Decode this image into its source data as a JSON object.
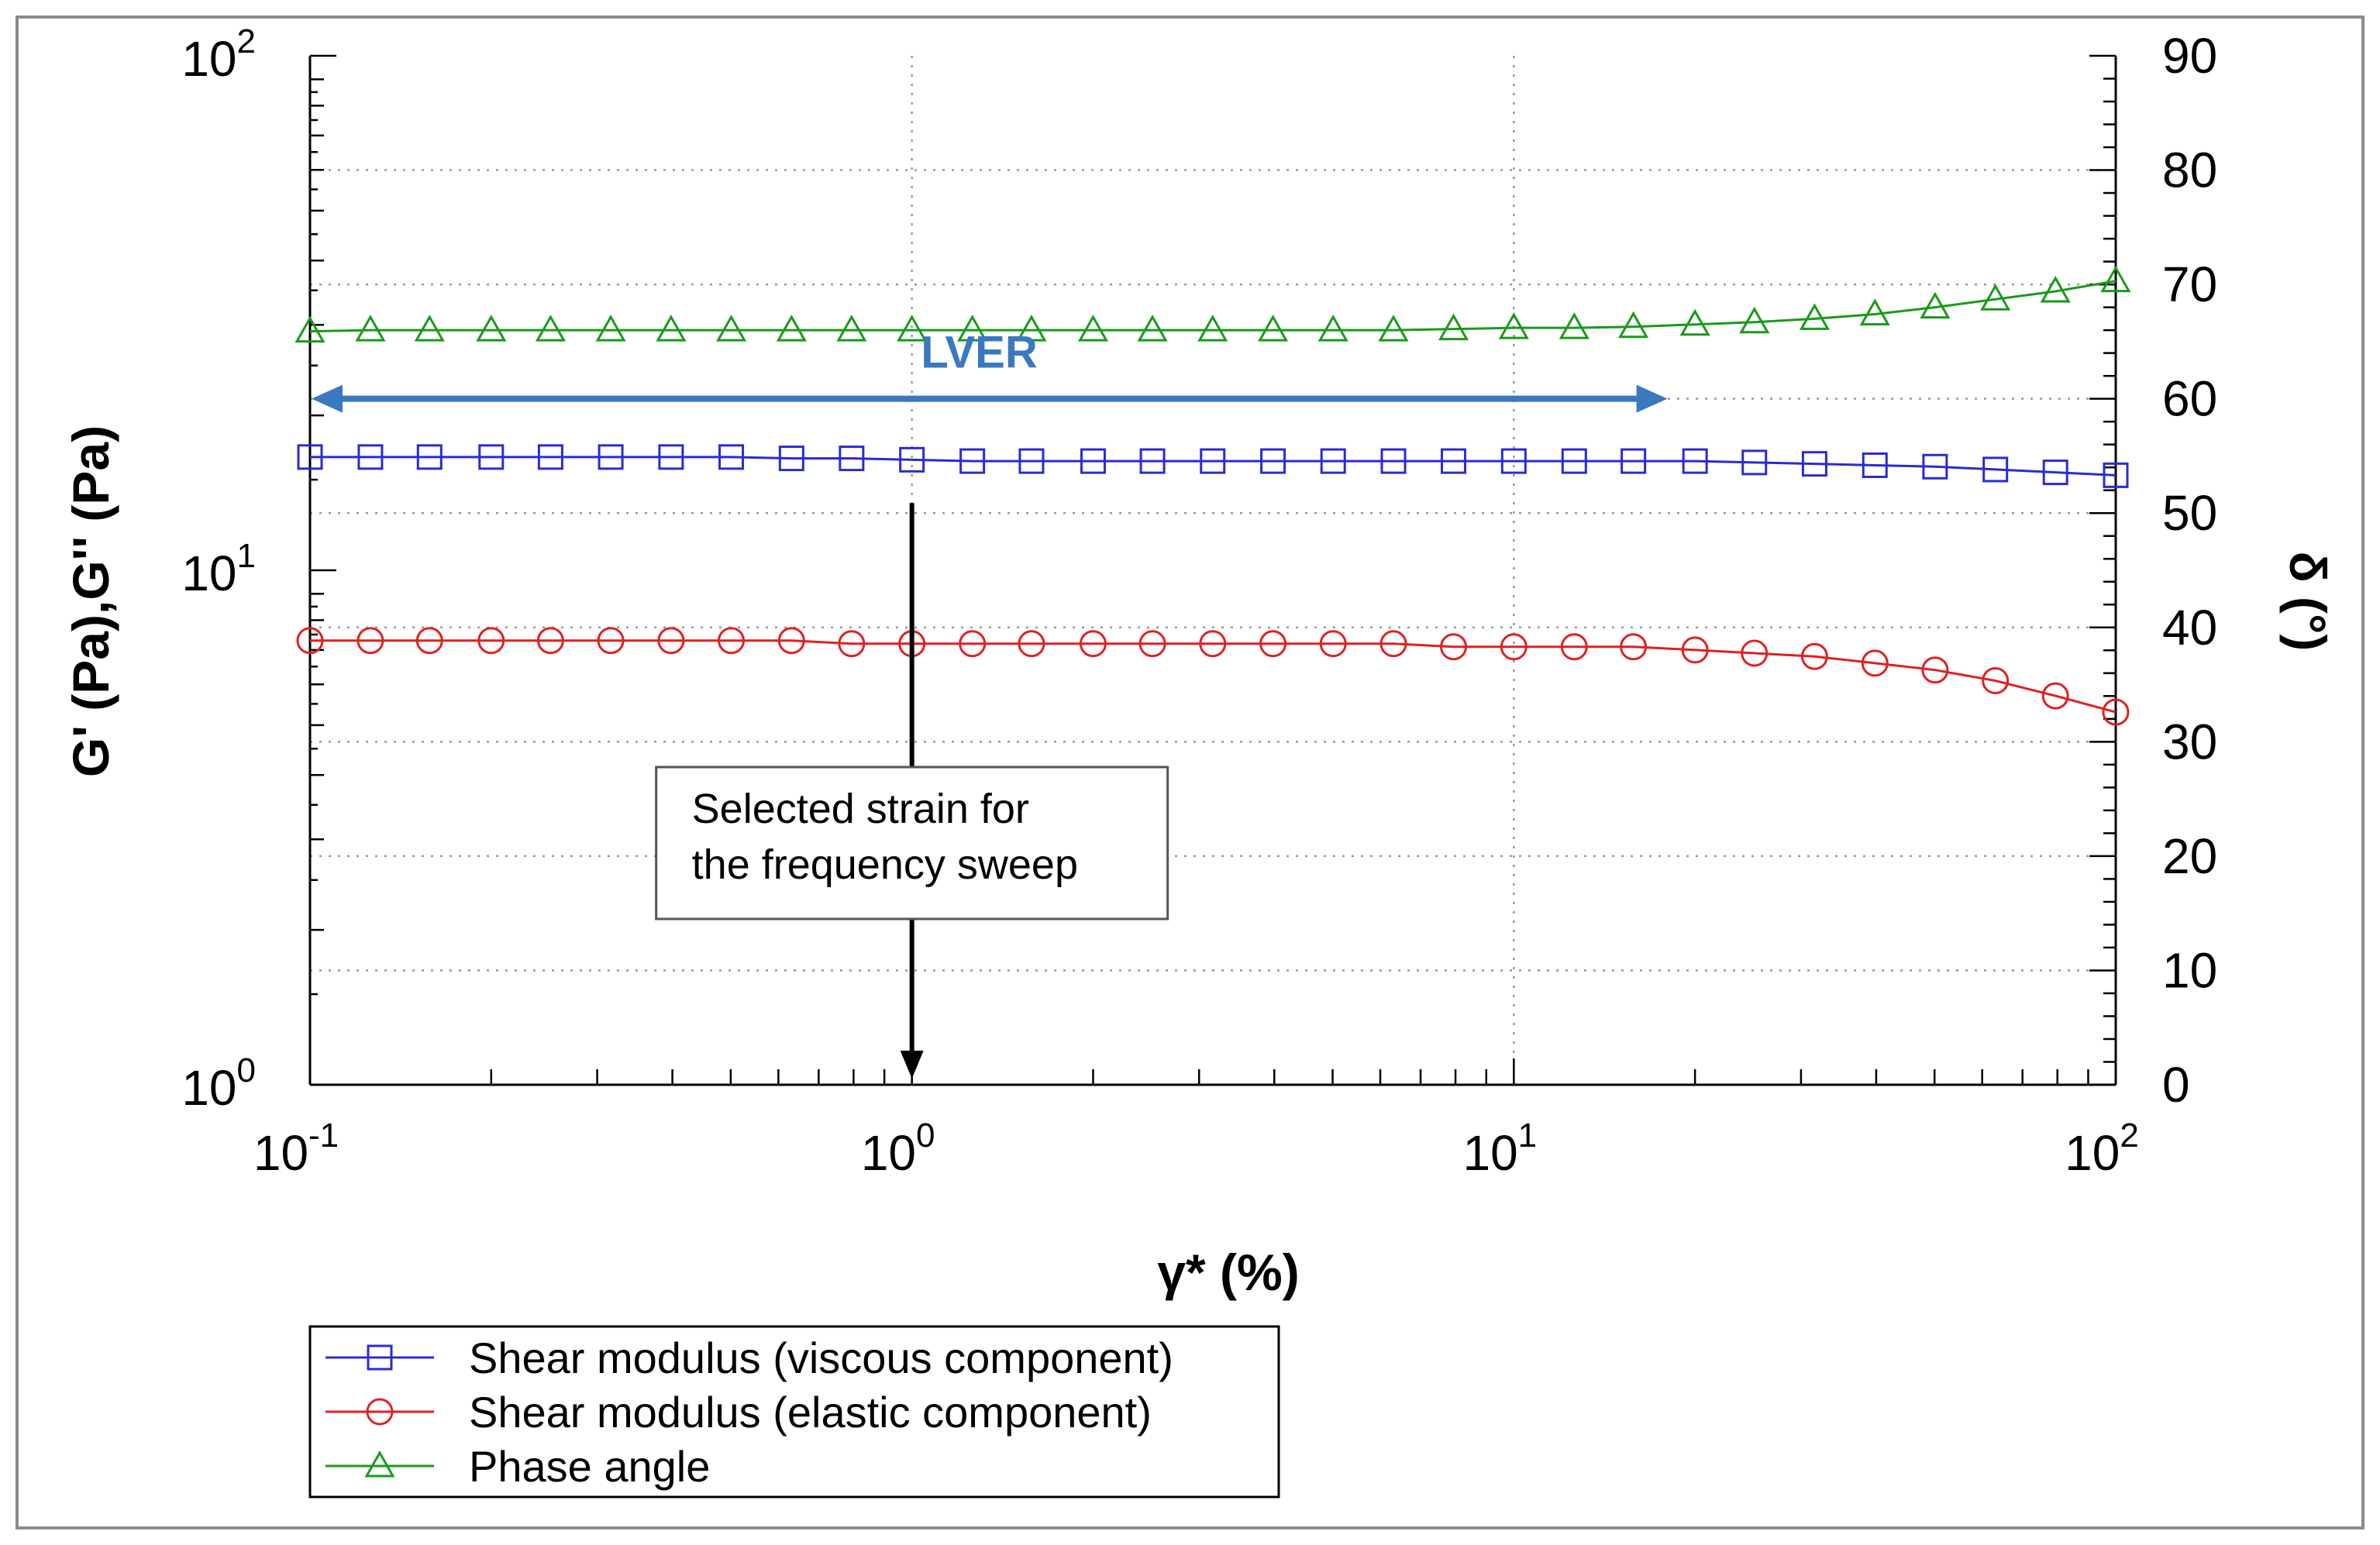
{
  "chart_data": {
    "type": "line",
    "xlabel": "γ* (%)",
    "ylabel_left": "G' (Pa),G'' (Pa)",
    "ylabel_right": "δ (°)",
    "xscale": "log",
    "yscale_left": "log",
    "xlim": [
      0.1,
      100
    ],
    "ylim_left": [
      1,
      100
    ],
    "ylim_right": [
      0,
      90
    ],
    "x_ticks": [
      {
        "base": "10",
        "exp": "-1"
      },
      {
        "base": "10",
        "exp": "0"
      },
      {
        "base": "10",
        "exp": "1"
      },
      {
        "base": "10",
        "exp": "2"
      }
    ],
    "y_left_ticks": [
      {
        "base": "10",
        "exp": "0"
      },
      {
        "base": "10",
        "exp": "1"
      },
      {
        "base": "10",
        "exp": "2"
      }
    ],
    "y_right_ticks": [
      "0",
      "10",
      "20",
      "30",
      "40",
      "50",
      "60",
      "70",
      "80",
      "90"
    ],
    "grid": true,
    "x": [
      0.1,
      0.126,
      0.158,
      0.2,
      0.251,
      0.316,
      0.398,
      0.501,
      0.631,
      0.794,
      1.0,
      1.26,
      1.58,
      2.0,
      2.51,
      3.16,
      3.98,
      5.01,
      6.31,
      7.94,
      10.0,
      12.6,
      15.8,
      20.0,
      25.1,
      31.6,
      39.8,
      50.1,
      63.1,
      79.4,
      100.0
    ],
    "series": [
      {
        "name": "Shear modulus (viscous component)",
        "axis": "left",
        "color": "#2b2bd0",
        "marker": "square",
        "values": [
          16.6,
          16.6,
          16.6,
          16.6,
          16.6,
          16.6,
          16.6,
          16.6,
          16.5,
          16.5,
          16.4,
          16.3,
          16.3,
          16.3,
          16.3,
          16.3,
          16.3,
          16.3,
          16.3,
          16.3,
          16.3,
          16.3,
          16.3,
          16.3,
          16.2,
          16.1,
          16.0,
          15.9,
          15.7,
          15.5,
          15.3
        ]
      },
      {
        "name": "Shear modulus (elastic component)",
        "axis": "left",
        "color": "#e02020",
        "marker": "circle",
        "values": [
          7.3,
          7.3,
          7.3,
          7.3,
          7.3,
          7.3,
          7.3,
          7.3,
          7.3,
          7.2,
          7.2,
          7.2,
          7.2,
          7.2,
          7.2,
          7.2,
          7.2,
          7.2,
          7.2,
          7.1,
          7.1,
          7.1,
          7.1,
          7.0,
          6.9,
          6.8,
          6.6,
          6.4,
          6.1,
          5.7,
          5.3
        ]
      },
      {
        "name": "Phase angle",
        "axis": "right",
        "color": "#1a9a1a",
        "marker": "triangle",
        "values": [
          65.9,
          66.0,
          66.0,
          66.0,
          66.0,
          66.0,
          66.0,
          66.0,
          66.0,
          66.0,
          66.0,
          66.0,
          66.0,
          66.0,
          66.0,
          66.0,
          66.0,
          66.0,
          66.0,
          66.1,
          66.2,
          66.2,
          66.3,
          66.5,
          66.7,
          67.0,
          67.4,
          68.0,
          68.7,
          69.4,
          70.3
        ]
      }
    ],
    "annotations": {
      "lver": {
        "label": "LVER",
        "color": "#3a78c0",
        "x_start": 0.1,
        "x_end": 18.0,
        "y": 60
      },
      "selected_strain": {
        "line1": "Selected strain for",
        "line2": "the frequency sweep",
        "x": 1.0,
        "y_from": 38,
        "y_to": 1.0
      }
    },
    "legend": {
      "placement": "bottom-left"
    }
  }
}
